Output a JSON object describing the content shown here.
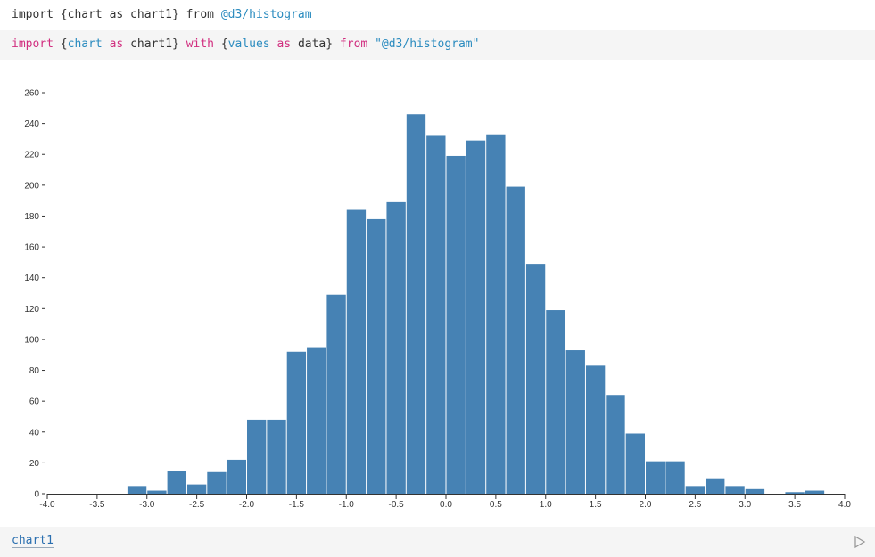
{
  "cells": [
    {
      "tokens": [
        "import {chart as chart1} from ",
        "@d3/histogram"
      ]
    },
    {
      "tokens": [
        "import",
        " {",
        "chart",
        " ",
        "as",
        " chart1} ",
        "with",
        " {",
        "values",
        " ",
        "as",
        " data} ",
        "from",
        " ",
        "\"@d3/histogram\""
      ]
    }
  ],
  "output_name": "chart1",
  "chart_data": {
    "type": "histogram",
    "color": "#4682b4",
    "bins": [
      -4.0,
      -3.8,
      -3.6,
      -3.4,
      -3.2,
      -3.0,
      -2.8,
      -2.6,
      -2.4,
      -2.2,
      -2.0,
      -1.8,
      -1.6,
      -1.4,
      -1.2,
      -1.0,
      -0.8,
      -0.6,
      -0.4,
      -0.2,
      0,
      0.2,
      0.4,
      0.6,
      0.8,
      1.0,
      1.2,
      1.4,
      1.6,
      1.8,
      2.0,
      2.2,
      2.4,
      2.6,
      2.8,
      3.0,
      3.2,
      3.4,
      3.6,
      3.8,
      4.0
    ],
    "values": [
      0,
      0,
      0,
      0,
      5,
      2,
      15,
      6,
      14,
      22,
      48,
      48,
      92,
      95,
      129,
      184,
      178,
      189,
      246,
      232,
      219,
      229,
      233,
      199,
      149,
      119,
      93,
      83,
      64,
      39,
      21,
      21,
      5,
      10,
      5,
      3,
      0,
      1,
      2,
      0
    ],
    "xlim": [
      -4.0,
      4.0
    ],
    "xticks": [
      {
        "value": -4.0,
        "label": "-4.0"
      },
      {
        "value": -3.5,
        "label": "-3.5"
      },
      {
        "value": -3.0,
        "label": "-3.0"
      },
      {
        "value": -2.5,
        "label": "-2.5"
      },
      {
        "value": -2.0,
        "label": "-2.0"
      },
      {
        "value": -1.5,
        "label": "-1.5"
      },
      {
        "value": -1.0,
        "label": "-1.0"
      },
      {
        "value": -0.5,
        "label": "-0.5"
      },
      {
        "value": 0,
        "label": "0.0"
      },
      {
        "value": 0.5,
        "label": "0.5"
      },
      {
        "value": 1.0,
        "label": "1.0"
      },
      {
        "value": 1.5,
        "label": "1.5"
      },
      {
        "value": 2.0,
        "label": "2.0"
      },
      {
        "value": 2.5,
        "label": "2.5"
      },
      {
        "value": 3.0,
        "label": "3.0"
      },
      {
        "value": 3.5,
        "label": "3.5"
      },
      {
        "value": 4.0,
        "label": "4.0"
      }
    ],
    "ylim": [
      0,
      260
    ],
    "yticks": [
      0,
      20,
      40,
      60,
      80,
      100,
      120,
      140,
      160,
      180,
      200,
      220,
      240,
      260
    ]
  }
}
